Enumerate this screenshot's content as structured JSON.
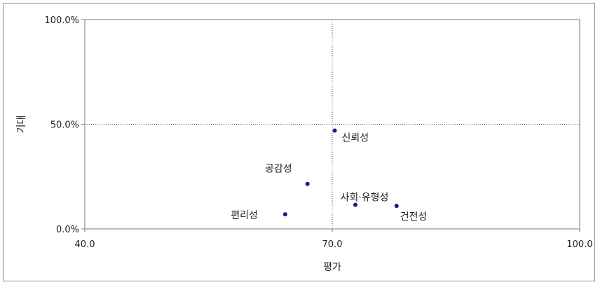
{
  "chart_data": {
    "type": "scatter",
    "xlabel": "평가",
    "ylabel": "기대",
    "xlim": [
      40.0,
      100.0
    ],
    "ylim": [
      0.0,
      100.0
    ],
    "x_ticks": [
      "40.0",
      "70.0",
      "100.0"
    ],
    "y_ticks": [
      "0.0%",
      "50.0%",
      "100.0%"
    ],
    "reference_lines": {
      "x": 70.0,
      "y": 50.0
    },
    "grid": false,
    "legend": "none",
    "marker_color": "#1a1a8c",
    "points": [
      {
        "label": "신뢰성",
        "x": 70.3,
        "y": 47.0
      },
      {
        "label": "공감성",
        "x": 67.0,
        "y": 21.5
      },
      {
        "label": "사회·유형성",
        "x": 72.8,
        "y": 11.5
      },
      {
        "label": "건전성",
        "x": 77.8,
        "y": 11.0
      },
      {
        "label": "편리성",
        "x": 64.3,
        "y": 7.0
      }
    ]
  }
}
